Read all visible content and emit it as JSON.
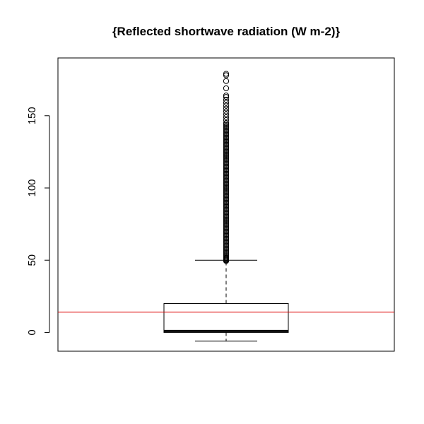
{
  "chart_data": {
    "type": "boxplot",
    "title": "{Reflected shortwave radiation (W m-2)}",
    "xlabel": "",
    "ylabel": "",
    "ylim": [
      -13,
      190
    ],
    "yticks": [
      0,
      50,
      100,
      150
    ],
    "grid": false,
    "legend": "none",
    "box": {
      "whisker_low": -6,
      "q1": 0,
      "median": 1,
      "q3": 20,
      "whisker_high": 50
    },
    "outliers": [
      49.5,
      50,
      50.5,
      51,
      51.5,
      52,
      53,
      54,
      55,
      56,
      57,
      58,
      59,
      60,
      61,
      62,
      63,
      64,
      65,
      66,
      67,
      68,
      69,
      70,
      71,
      72,
      73,
      74,
      75,
      76,
      77,
      78,
      79,
      80,
      81,
      82,
      83,
      84,
      85,
      86,
      87,
      88,
      89,
      90,
      91,
      92,
      93,
      94,
      95,
      96,
      97,
      98,
      99,
      100,
      101,
      102,
      103,
      104,
      105,
      106,
      107,
      108,
      109,
      110,
      111,
      112,
      113,
      114,
      115,
      116,
      117,
      118,
      119,
      120,
      121,
      122,
      123,
      124,
      125,
      126,
      127,
      128,
      129,
      130,
      131,
      132,
      133,
      134,
      135,
      136,
      137,
      138,
      139,
      140,
      141,
      142,
      143,
      144,
      145,
      147,
      149,
      151,
      153,
      155,
      157,
      159,
      161,
      163,
      164,
      169,
      174,
      178,
      179
    ],
    "reference_line": {
      "value": 14,
      "color": "#dd0000"
    }
  }
}
